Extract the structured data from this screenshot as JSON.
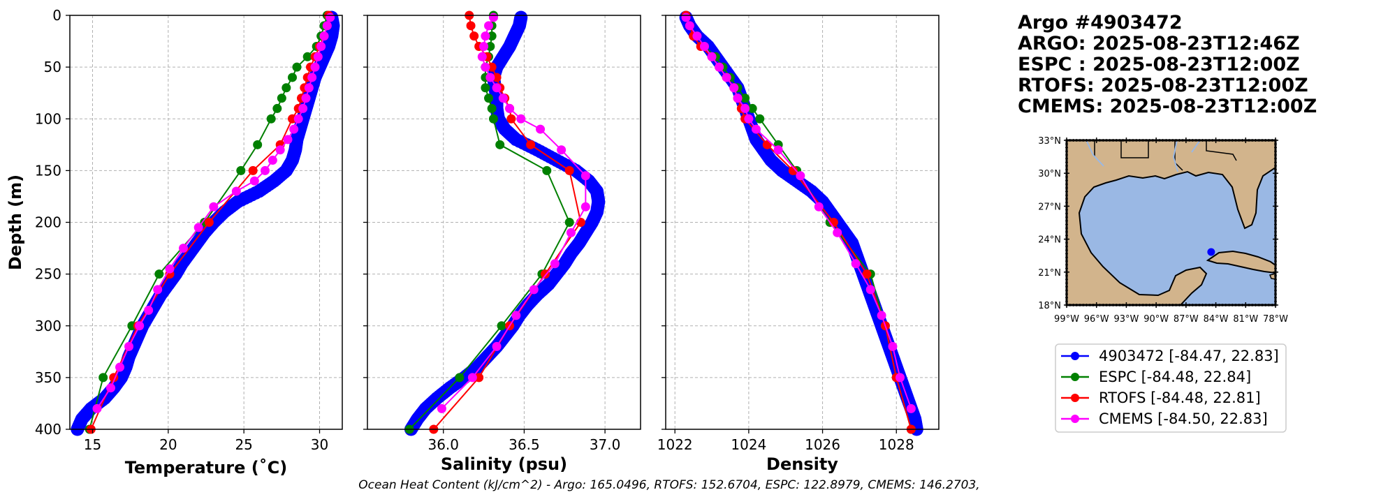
{
  "title_lines": [
    "Argo #4903472",
    "ARGO: 2025-08-23T12:46Z",
    "ESPC : 2025-08-23T12:00Z",
    "RTOFS: 2025-08-23T12:00Z",
    "CMEMS: 2025-08-23T12:00Z"
  ],
  "footer": "Ocean Heat Content (kJ/cm^2) - Argo: 165.0496,  RTOFS: 152.6704,  ESPC: 122.8979,  CMEMS: 146.2703,",
  "colors": {
    "argo": "#0000ff",
    "espc": "#008000",
    "rtofs": "#ff0000",
    "cmems": "#ff00ff",
    "land": "#d2b48c",
    "ocean": "#9ab8e4",
    "grid": "#b0b0b0"
  },
  "legend": [
    {
      "label": "4903472 [-84.47, 22.83]",
      "color": "#0000ff"
    },
    {
      "label": "ESPC [-84.48, 22.84]",
      "color": "#008000"
    },
    {
      "label": "RTOFS [-84.48, 22.81]",
      "color": "#ff0000"
    },
    {
      "label": "CMEMS [-84.50, 22.83]",
      "color": "#ff00ff"
    }
  ],
  "map": {
    "lat_ticks": [
      "33°N",
      "30°N",
      "27°N",
      "24°N",
      "21°N",
      "18°N"
    ],
    "lon_ticks": [
      "99°W",
      "96°W",
      "93°W",
      "90°W",
      "87°W",
      "84°W",
      "81°W",
      "78°W"
    ],
    "extent": {
      "lon": [
        -99,
        -78
      ],
      "lat": [
        18,
        33
      ]
    },
    "float_position": {
      "lon": -84.47,
      "lat": 22.83
    }
  },
  "chart_data": [
    {
      "type": "line",
      "title": "",
      "xlabel": "Temperature (˚C)",
      "ylabel": "Depth (m)",
      "xlim": [
        13.5,
        31.5
      ],
      "ylim": [
        400,
        0
      ],
      "x_ticks": [
        15,
        20,
        25,
        30
      ],
      "y_ticks": [
        0,
        50,
        100,
        150,
        200,
        250,
        300,
        350,
        400
      ],
      "grid": true,
      "series": [
        {
          "name": "4903472",
          "depth": [
            2,
            10,
            20,
            30,
            40,
            50,
            60,
            70,
            80,
            90,
            100,
            110,
            120,
            130,
            140,
            150,
            160,
            170,
            180,
            190,
            200,
            210,
            220,
            230,
            240,
            250,
            260,
            270,
            280,
            290,
            300,
            310,
            320,
            330,
            340,
            350,
            360,
            370,
            380,
            390,
            400
          ],
          "values": [
            30.8,
            30.9,
            30.8,
            30.6,
            30.3,
            30.0,
            29.7,
            29.5,
            29.3,
            29.1,
            28.9,
            28.7,
            28.5,
            28.4,
            28.2,
            27.8,
            27.0,
            26.0,
            24.6,
            23.7,
            23.0,
            22.4,
            21.9,
            21.4,
            20.9,
            20.5,
            20.0,
            19.5,
            19.1,
            18.7,
            18.3,
            18.0,
            17.7,
            17.4,
            17.2,
            16.9,
            16.4,
            15.8,
            14.9,
            14.3,
            14.0
          ]
        },
        {
          "name": "ESPC",
          "depth": [
            0,
            10,
            20,
            30,
            40,
            50,
            60,
            70,
            80,
            90,
            100,
            125,
            150,
            200,
            250,
            300,
            350,
            400
          ],
          "values": [
            30.5,
            30.3,
            30.1,
            29.8,
            29.2,
            28.5,
            28.2,
            27.8,
            27.5,
            27.2,
            26.8,
            25.9,
            24.8,
            22.4,
            19.4,
            17.6,
            15.7,
            14.8
          ]
        },
        {
          "name": "RTOFS",
          "depth": [
            0,
            10,
            20,
            30,
            40,
            50,
            60,
            70,
            80,
            90,
            100,
            125,
            150,
            200,
            250,
            300,
            350,
            400
          ],
          "values": [
            30.6,
            30.5,
            30.3,
            30.0,
            29.7,
            29.4,
            29.2,
            29.0,
            28.8,
            28.6,
            28.2,
            27.4,
            25.6,
            22.7,
            20.1,
            18.0,
            16.4,
            14.9
          ]
        },
        {
          "name": "CMEMS",
          "depth": [
            2,
            10,
            20,
            30,
            40,
            50,
            60,
            70,
            80,
            90,
            100,
            110,
            120,
            130,
            140,
            150,
            160,
            170,
            185,
            205,
            225,
            245,
            265,
            285,
            300,
            320,
            340,
            360,
            380
          ],
          "values": [
            30.7,
            30.5,
            30.3,
            30.1,
            29.9,
            29.7,
            29.5,
            29.3,
            29.1,
            28.9,
            28.6,
            28.3,
            27.9,
            27.4,
            26.9,
            26.4,
            25.7,
            24.5,
            23.0,
            22.0,
            21.0,
            20.1,
            19.3,
            18.7,
            18.1,
            17.4,
            16.8,
            16.2,
            15.3
          ]
        }
      ]
    },
    {
      "type": "line",
      "title": "",
      "xlabel": "Salinity (psu)",
      "ylabel": "",
      "xlim": [
        35.53,
        37.22
      ],
      "ylim": [
        400,
        0
      ],
      "x_ticks": [
        36.0,
        36.5,
        37.0
      ],
      "y_ticks": [
        0,
        50,
        100,
        150,
        200,
        250,
        300,
        350,
        400
      ],
      "grid": true,
      "series": [
        {
          "name": "4903472",
          "depth": [
            2,
            10,
            20,
            30,
            40,
            50,
            60,
            70,
            80,
            90,
            100,
            110,
            120,
            130,
            140,
            150,
            160,
            170,
            180,
            190,
            200,
            210,
            220,
            230,
            240,
            250,
            260,
            270,
            280,
            290,
            300,
            310,
            320,
            330,
            340,
            350,
            360,
            370,
            380,
            390,
            400
          ],
          "values": [
            36.48,
            36.47,
            36.44,
            36.41,
            36.37,
            36.33,
            36.31,
            36.32,
            36.33,
            36.33,
            36.34,
            36.38,
            36.45,
            36.58,
            36.7,
            36.82,
            36.9,
            36.95,
            36.96,
            36.95,
            36.92,
            36.88,
            36.84,
            36.79,
            36.75,
            36.7,
            36.65,
            36.58,
            36.52,
            36.47,
            36.43,
            36.38,
            36.33,
            36.27,
            36.21,
            36.13,
            36.04,
            35.96,
            35.89,
            35.84,
            35.8
          ]
        },
        {
          "name": "ESPC",
          "depth": [
            0,
            10,
            20,
            30,
            40,
            50,
            60,
            70,
            80,
            90,
            100,
            125,
            150,
            200,
            250,
            300,
            350,
            400
          ],
          "values": [
            36.31,
            36.3,
            36.3,
            36.29,
            36.28,
            36.26,
            36.26,
            36.26,
            36.28,
            36.3,
            36.31,
            36.35,
            36.64,
            36.78,
            36.61,
            36.36,
            36.1,
            35.79
          ]
        },
        {
          "name": "RTOFS",
          "depth": [
            0,
            10,
            20,
            30,
            40,
            50,
            60,
            70,
            80,
            90,
            100,
            125,
            150,
            200,
            250,
            300,
            350,
            400
          ],
          "values": [
            36.16,
            36.17,
            36.19,
            36.22,
            36.27,
            36.3,
            36.33,
            36.35,
            36.38,
            36.41,
            36.42,
            36.54,
            36.78,
            36.85,
            36.63,
            36.41,
            36.22,
            35.94
          ]
        },
        {
          "name": "CMEMS",
          "depth": [
            2,
            10,
            20,
            30,
            40,
            50,
            60,
            70,
            80,
            90,
            100,
            110,
            130,
            155,
            185,
            210,
            240,
            265,
            290,
            320,
            350,
            380
          ],
          "values": [
            36.31,
            36.28,
            36.26,
            36.25,
            36.24,
            36.26,
            36.29,
            36.33,
            36.37,
            36.41,
            36.48,
            36.6,
            36.73,
            36.88,
            36.88,
            36.79,
            36.69,
            36.56,
            36.45,
            36.33,
            36.18,
            35.99
          ]
        }
      ]
    },
    {
      "type": "line",
      "title": "",
      "xlabel": "Density",
      "ylabel": "",
      "xlim": [
        1021.75,
        1029.15
      ],
      "ylim": [
        400,
        0
      ],
      "x_ticks": [
        1022,
        1024,
        1026,
        1028
      ],
      "y_ticks": [
        0,
        50,
        100,
        150,
        200,
        250,
        300,
        350,
        400
      ],
      "grid": true,
      "series": [
        {
          "name": "4903472",
          "depth": [
            2,
            10,
            20,
            30,
            40,
            50,
            60,
            70,
            80,
            90,
            100,
            110,
            120,
            130,
            140,
            150,
            160,
            170,
            180,
            190,
            200,
            210,
            220,
            230,
            240,
            250,
            260,
            270,
            280,
            290,
            300,
            310,
            320,
            330,
            340,
            350,
            360,
            370,
            380,
            390,
            400
          ],
          "values": [
            1022.3,
            1022.4,
            1022.6,
            1022.9,
            1023.1,
            1023.3,
            1023.5,
            1023.7,
            1023.8,
            1023.9,
            1024.0,
            1024.1,
            1024.2,
            1024.4,
            1024.6,
            1024.9,
            1025.3,
            1025.7,
            1026.0,
            1026.2,
            1026.4,
            1026.6,
            1026.8,
            1026.9,
            1027.0,
            1027.1,
            1027.2,
            1027.3,
            1027.4,
            1027.5,
            1027.6,
            1027.7,
            1027.8,
            1027.9,
            1028.0,
            1028.1,
            1028.2,
            1028.3,
            1028.4,
            1028.5,
            1028.55
          ]
        },
        {
          "name": "ESPC",
          "depth": [
            0,
            10,
            20,
            30,
            40,
            50,
            60,
            70,
            80,
            90,
            100,
            125,
            150,
            200,
            250,
            300,
            350,
            400
          ],
          "values": [
            1022.3,
            1022.4,
            1022.6,
            1022.8,
            1023.1,
            1023.3,
            1023.5,
            1023.7,
            1023.9,
            1024.1,
            1024.3,
            1024.8,
            1025.3,
            1026.2,
            1027.3,
            1027.7,
            1028.0,
            1028.4
          ]
        },
        {
          "name": "RTOFS",
          "depth": [
            0,
            10,
            20,
            30,
            40,
            50,
            60,
            70,
            80,
            90,
            100,
            125,
            150,
            200,
            250,
            300,
            350,
            400
          ],
          "values": [
            1022.3,
            1022.4,
            1022.5,
            1022.7,
            1023.0,
            1023.2,
            1023.4,
            1023.6,
            1023.7,
            1023.8,
            1023.9,
            1024.5,
            1025.2,
            1026.3,
            1027.2,
            1027.7,
            1028.0,
            1028.4
          ]
        },
        {
          "name": "CMEMS",
          "depth": [
            2,
            10,
            20,
            30,
            40,
            50,
            60,
            70,
            80,
            90,
            100,
            110,
            130,
            155,
            185,
            210,
            240,
            265,
            290,
            320,
            350,
            380
          ],
          "values": [
            1022.3,
            1022.4,
            1022.6,
            1022.8,
            1023.0,
            1023.2,
            1023.4,
            1023.6,
            1023.7,
            1023.9,
            1024.0,
            1024.2,
            1024.8,
            1025.4,
            1025.9,
            1026.4,
            1026.9,
            1027.3,
            1027.6,
            1027.9,
            1028.1,
            1028.4
          ]
        }
      ]
    }
  ]
}
